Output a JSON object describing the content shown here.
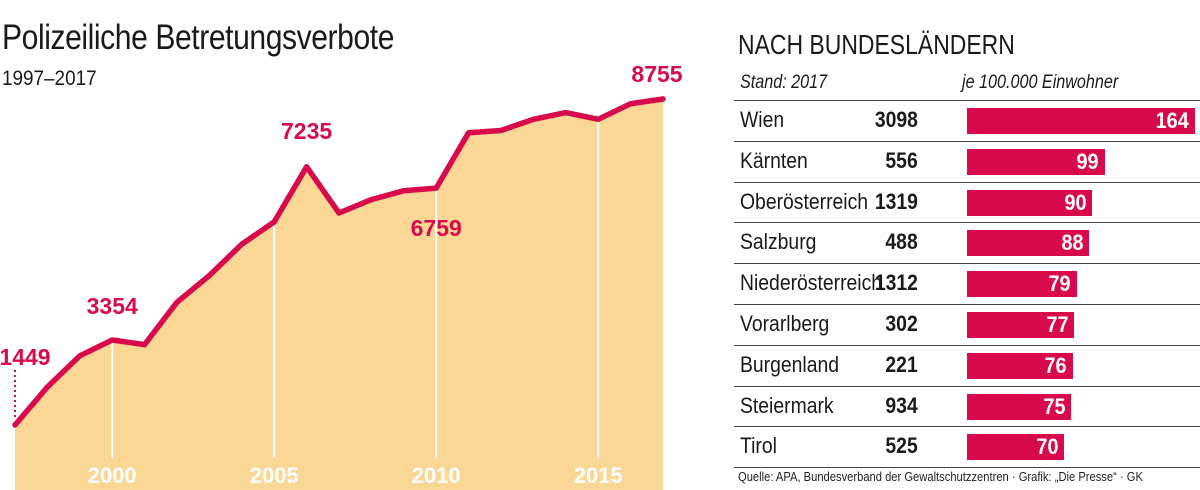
{
  "left": {
    "title": "Polizeiliche Betretungsverbote",
    "subtitle": "1997–2017"
  },
  "right": {
    "title": "NACH BUNDESLÄNDERN",
    "col_stand": "Stand: 2017",
    "col_rate": "je 100.000 Einwohner"
  },
  "source": "Quelle: APA, Bundesverband der Gewaltschutzzentren · Grafik: „Die Presse“ · GK",
  "colors": {
    "accent": "#d90a4c",
    "area_fill": "#fbd796",
    "text": "#1a1a1a"
  },
  "chart_data": [
    {
      "type": "area",
      "x": [
        1997,
        1998,
        1999,
        2000,
        2001,
        2002,
        2003,
        2004,
        2005,
        2006,
        2007,
        2008,
        2009,
        2010,
        2011,
        2012,
        2013,
        2014,
        2015,
        2016,
        2017
      ],
      "values": [
        1449,
        2300,
        3000,
        3354,
        3250,
        4200,
        4800,
        5500,
        6000,
        7235,
        6200,
        6500,
        6700,
        6759,
        8000,
        8050,
        8300,
        8450,
        8300,
        8650,
        8755
      ],
      "labeled_points": [
        {
          "x": 1997,
          "label": "1449"
        },
        {
          "x": 2000,
          "label": "3354"
        },
        {
          "x": 2006,
          "label": "7235"
        },
        {
          "x": 2010,
          "label": "6759"
        },
        {
          "x": 2017,
          "label": "8755"
        }
      ],
      "x_ticks": [
        "2000",
        "2005",
        "2010",
        "2015"
      ],
      "x_tick_values": [
        2000,
        2005,
        2010,
        2015
      ]
    },
    {
      "type": "bar",
      "categories": [
        "Wien",
        "Kärnten",
        "Oberösterreich",
        "Salzburg",
        "Niederösterreich",
        "Vorarlberg",
        "Burgenland",
        "Steiermark",
        "Tirol"
      ],
      "counts": [
        "3098",
        "556",
        "1319",
        "488",
        "1312",
        "302",
        "221",
        "934",
        "525"
      ],
      "values": [
        164,
        99,
        90,
        88,
        79,
        77,
        76,
        75,
        70
      ],
      "value_labels": [
        "164",
        "99",
        "90",
        "88",
        "79",
        "77",
        "76",
        "75",
        "70"
      ]
    }
  ]
}
